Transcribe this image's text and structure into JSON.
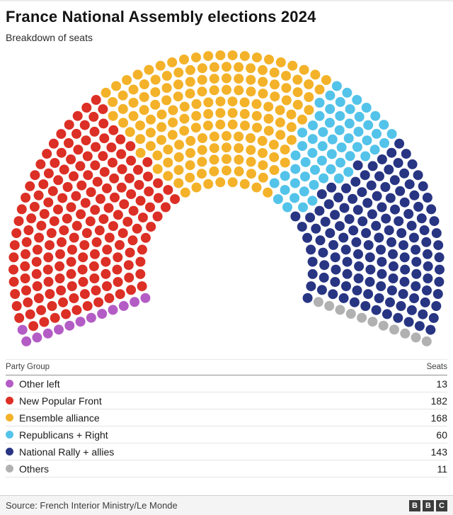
{
  "chart_data": {
    "type": "parliament",
    "title": "France National Assembly elections 2024",
    "subtitle": "Breakdown of seats",
    "total_seats": 577,
    "rows": 12,
    "arc_span_deg": 220,
    "legend_position": "bottom-table",
    "series": [
      {
        "name": "Other left",
        "seats": 13,
        "color": "#b45cc5"
      },
      {
        "name": "New Popular Front",
        "seats": 182,
        "color": "#dc2f25"
      },
      {
        "name": "Ensemble alliance",
        "seats": 168,
        "color": "#f3b229"
      },
      {
        "name": "Republicans + Right",
        "seats": 60,
        "color": "#53c3e9"
      },
      {
        "name": "National Rally + allies",
        "seats": 143,
        "color": "#283583"
      },
      {
        "name": "Others",
        "seats": 11,
        "color": "#b1b1b1"
      }
    ]
  },
  "legend": {
    "col_party": "Party Group",
    "col_seats": "Seats"
  },
  "footer": {
    "source": "Source: French Interior Ministry/Le Monde",
    "logo_letters": [
      "B",
      "B",
      "C"
    ]
  }
}
